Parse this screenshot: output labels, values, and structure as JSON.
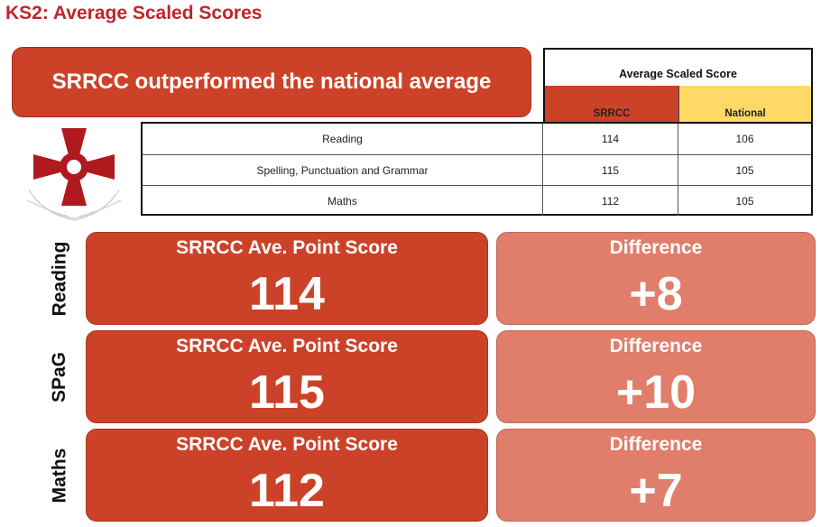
{
  "title": "KS2: Average Scaled Scores",
  "banner": "SRRCC outperformed the national average",
  "table": {
    "header": "Average Scaled Score",
    "col_srrcc": "SRRCC",
    "col_national": "National",
    "rows": [
      {
        "subject": "Reading",
        "srrcc": "114",
        "national": "106"
      },
      {
        "subject": "Spelling, Punctuation and Grammar",
        "srrcc": "115",
        "national": "105"
      },
      {
        "subject": "Maths",
        "srrcc": "112",
        "national": "105"
      }
    ]
  },
  "cards": [
    {
      "side": "Reading",
      "score_label": "SRRCC Ave. Point Score",
      "score": "114",
      "diff_label": "Difference",
      "diff": "+8"
    },
    {
      "side": "SPaG",
      "score_label": "SRRCC Ave. Point Score",
      "score": "115",
      "diff_label": "Difference",
      "diff": "+10"
    },
    {
      "side": "Maths",
      "score_label": "SRRCC Ave. Point Score",
      "score": "112",
      "diff_label": "Difference",
      "diff": "+7"
    }
  ],
  "colors": {
    "title": "#c0252c",
    "srrcc": "#cc4228",
    "national": "#ffd966",
    "difference": "#e07e6b"
  },
  "logo": {
    "icon": "cross-pattee-crest-icon"
  }
}
